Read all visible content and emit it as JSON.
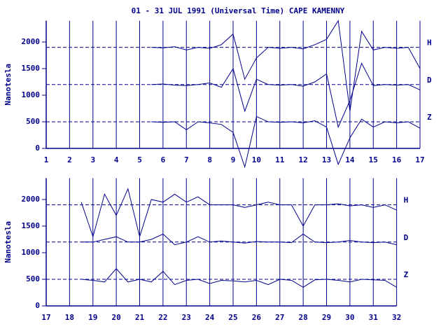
{
  "chart_data": [
    {
      "type": "line",
      "title": "01 - 31 JUL 1991 (Universal Time) CAPE KAMENNY",
      "y_label": "Nanotesla",
      "xlim": [
        1,
        17
      ],
      "xticks": [
        1,
        2,
        3,
        4,
        5,
        6,
        7,
        8,
        9,
        10,
        11,
        12,
        13,
        14,
        15,
        16,
        17
      ],
      "ylim": [
        0,
        2400
      ],
      "yticks": [
        0,
        500,
        1000,
        1500,
        2000
      ],
      "grid": true,
      "x": [
        5.5,
        6,
        6.5,
        7,
        7.5,
        8,
        8.5,
        9,
        9.5,
        10,
        10.5,
        11,
        11.5,
        12,
        12.5,
        13,
        13.5,
        14,
        14.5,
        15,
        15.5,
        16,
        16.5,
        17
      ],
      "series": [
        {
          "name": "H",
          "color": "#00008b",
          "baseline": 1900,
          "values": [
            1900,
            1890,
            1910,
            1850,
            1900,
            1880,
            1950,
            2150,
            1300,
            1700,
            1900,
            1880,
            1900,
            1870,
            1950,
            2050,
            2400,
            700,
            2200,
            1850,
            1900,
            1880,
            1900,
            1500
          ]
        },
        {
          "name": "D",
          "color": "#00008b",
          "baseline": 1200,
          "values": [
            1200,
            1210,
            1190,
            1180,
            1200,
            1230,
            1150,
            1500,
            700,
            1300,
            1200,
            1190,
            1200,
            1170,
            1250,
            1400,
            400,
            900,
            1600,
            1180,
            1200,
            1190,
            1200,
            1100
          ]
        },
        {
          "name": "Z",
          "color": "#00008b",
          "baseline": 500,
          "values": [
            500,
            490,
            500,
            350,
            500,
            480,
            450,
            300,
            -350,
            600,
            500,
            490,
            500,
            480,
            520,
            400,
            -300,
            200,
            550,
            400,
            500,
            480,
            500,
            380
          ]
        }
      ]
    },
    {
      "type": "line",
      "y_label": "Nanotesla",
      "xlim": [
        17,
        32
      ],
      "xticks": [
        17,
        18,
        19,
        20,
        21,
        22,
        23,
        24,
        25,
        26,
        27,
        28,
        29,
        30,
        31,
        32
      ],
      "ylim": [
        0,
        2400
      ],
      "yticks": [
        0,
        500,
        1000,
        1500,
        2000
      ],
      "grid": true,
      "x": [
        18.5,
        19,
        19.5,
        20,
        20.5,
        21,
        21.5,
        22,
        22.5,
        23,
        23.5,
        24,
        24.5,
        25,
        25.5,
        26,
        26.5,
        27,
        27.5,
        28,
        28.5,
        29,
        29.5,
        30,
        30.5,
        31,
        31.5,
        32
      ],
      "series": [
        {
          "name": "H",
          "color": "#00008b",
          "baseline": 1900,
          "values": [
            1950,
            1300,
            2100,
            1700,
            2200,
            1300,
            2000,
            1950,
            2100,
            1950,
            2050,
            1900,
            1900,
            1900,
            1850,
            1900,
            1950,
            1900,
            1900,
            1500,
            1900,
            1900,
            1920,
            1880,
            1900,
            1850,
            1900,
            1800
          ]
        },
        {
          "name": "D",
          "color": "#00008b",
          "baseline": 1200,
          "values": [
            1200,
            1200,
            1250,
            1300,
            1200,
            1200,
            1250,
            1350,
            1150,
            1200,
            1300,
            1200,
            1220,
            1200,
            1180,
            1210,
            1200,
            1200,
            1190,
            1350,
            1200,
            1190,
            1200,
            1230,
            1200,
            1190,
            1200,
            1150
          ]
        },
        {
          "name": "Z",
          "color": "#00008b",
          "baseline": 500,
          "values": [
            500,
            480,
            450,
            700,
            450,
            500,
            450,
            650,
            400,
            480,
            500,
            420,
            480,
            470,
            450,
            480,
            400,
            500,
            480,
            350,
            490,
            500,
            480,
            450,
            500,
            490,
            480,
            350
          ]
        }
      ]
    }
  ]
}
